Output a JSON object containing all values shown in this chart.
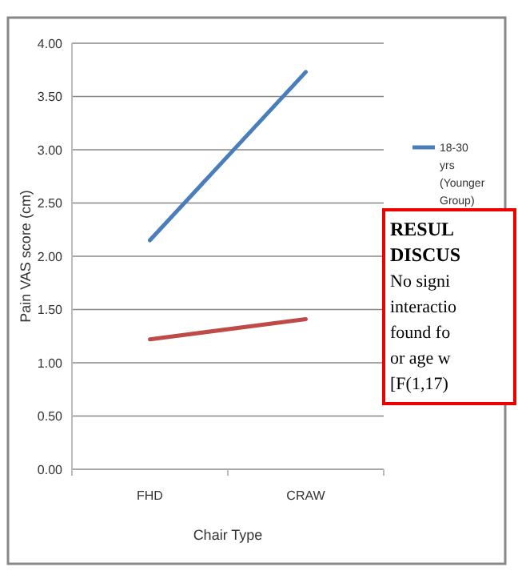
{
  "chart_data": {
    "type": "line",
    "xlabel": "Chair Type",
    "ylabel": "Pain VAS score (cm)",
    "categories": [
      "FHD",
      "CRAW"
    ],
    "series": [
      {
        "name": "18-30 yrs (Younger Group)",
        "color": "#4a7ebb",
        "values": [
          2.15,
          3.73
        ]
      },
      {
        "color": "#be4b48",
        "values": [
          1.22,
          1.41
        ]
      }
    ],
    "ylim": [
      0,
      4
    ],
    "yticks": [
      {
        "value": 0,
        "label": "0.00"
      },
      {
        "value": 0.5,
        "label": "0.50"
      },
      {
        "value": 1,
        "label": "1.00"
      },
      {
        "value": 1.5,
        "label": "1.50"
      },
      {
        "value": 2,
        "label": "2.00"
      },
      {
        "value": 2.5,
        "label": "2.50"
      },
      {
        "value": 3,
        "label": "3.00"
      },
      {
        "value": 3.5,
        "label": "3.50"
      },
      {
        "value": 4,
        "label": "4.00"
      }
    ],
    "grid": "y",
    "legend": "right",
    "marker": "none",
    "line_style": "solid",
    "annotations": [
      "RESUL",
      "DISCUS",
      "No signi",
      "interactio",
      "found fo",
      "or age w",
      "[F(1,17)"
    ]
  }
}
